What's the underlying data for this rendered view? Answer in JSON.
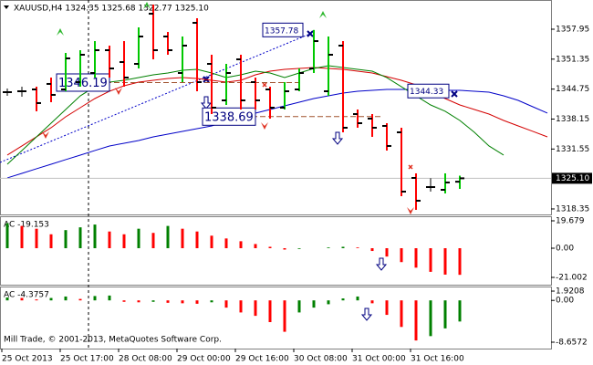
{
  "chart_data": [
    {
      "type": "ohlc",
      "title": "XAUUSD,H4  1324.35 1325.68 1322.77 1325.10",
      "categories": [
        "25 Oct 2013",
        null,
        null,
        null,
        "25 Oct 17:00",
        null,
        null,
        null,
        "28 Oct 08:00",
        null,
        null,
        null,
        "29 Oct 00:00",
        null,
        null,
        null,
        "29 Oct 16:00",
        null,
        null,
        null,
        "30 Oct 08:00",
        null,
        null,
        null,
        "31 Oct 00:00",
        null,
        null,
        null,
        "31 Oct 16:00",
        null,
        null,
        null,
        null,
        null,
        null,
        null,
        null,
        null
      ],
      "open": [
        1344.08,
        1344.28,
        1344.68,
        1345.89,
        1344.68,
        1346.29,
        1348.3,
        1353.32,
        1350.71,
        1350.31,
        1361.36,
        1356.34,
        1348.3,
        1359.35,
        1350.31,
        1342.27,
        1351.31,
        1346.29,
        1344.68,
        1340.66,
        1344.68,
        1349.3,
        1344.28,
        1354.33,
        1339.25,
        1338.25,
        1336.64,
        1335.23,
        1325.18,
        1323.17,
        1322.57,
        1324.35,
        null,
        null,
        null,
        null,
        null,
        null
      ],
      "high": [
        1344.88,
        1345.28,
        1345.28,
        1347.29,
        1352.72,
        1353.32,
        1355.33,
        1354.33,
        1355.33,
        1358.35,
        1363.37,
        1357.34,
        1356.34,
        1360.36,
        1352.32,
        1350.31,
        1352.32,
        1347.29,
        1345.28,
        1346.29,
        1349.3,
        1357.78,
        1356.34,
        1355.33,
        1340.26,
        1339.25,
        1337.24,
        1336.24,
        1326.19,
        1325.18,
        1326.19,
        1325.68,
        null,
        null,
        null,
        null,
        null,
        null
      ],
      "low": [
        1343.27,
        1343.07,
        1339.86,
        1341.87,
        1344.28,
        1345.28,
        1347.29,
        1347.29,
        1345.28,
        1349.3,
        1351.31,
        1352.32,
        1346.29,
        1344.28,
        1339.25,
        1341.26,
        1340.26,
        1340.26,
        1338.25,
        1340.26,
        1344.28,
        1348.3,
        1343.27,
        1335.23,
        1336.24,
        1334.23,
        1331.21,
        1321.16,
        1318.15,
        1322.17,
        1321.77,
        1322.77,
        null,
        null,
        null,
        null,
        null,
        null
      ],
      "close": [
        1344.08,
        1344.28,
        1341.67,
        1343.48,
        1351.52,
        1352.32,
        1353.32,
        1349.3,
        1347.29,
        1356.34,
        1353.32,
        1353.32,
        1354.33,
        1346.29,
        1340.66,
        1348.3,
        1342.27,
        1342.27,
        1340.66,
        1344.28,
        1348.3,
        1355.33,
        1352.32,
        1336.24,
        1337.24,
        1336.24,
        1332.22,
        1322.17,
        1320.16,
        1323.17,
        1324.18,
        1325.1,
        null,
        null,
        null,
        null,
        null,
        null
      ],
      "up_color": "#00c800",
      "down_color": "#ff0000",
      "flat_color": "#808080",
      "series": [
        {
          "color": "#0000c8",
          "values": [
            1325.19,
            1326.19,
            1327.2,
            1328.2,
            1329.21,
            1330.21,
            1331.22,
            1332.22,
            1332.82,
            1333.43,
            1334.23,
            1334.83,
            1335.44,
            1336.04,
            1336.64,
            1337.65,
            1338.65,
            1339.46,
            1340.26,
            1341.06,
            1341.87,
            1342.67,
            1343.27,
            1343.88,
            1344.28,
            1344.48,
            1344.68,
            1344.68,
            1344.68,
            1344.68,
            1344.48,
            1344.48,
            1344.28,
            1344.08,
            1343.27,
            1342.27,
            1340.86,
            1339.46
          ]
        },
        {
          "color": "#d40000",
          "values": [
            1330.21,
            1332.22,
            1334.23,
            1336.24,
            1338.65,
            1340.66,
            1342.67,
            1344.28,
            1345.49,
            1346.29,
            1346.69,
            1347.09,
            1347.29,
            1347.09,
            1346.69,
            1346.29,
            1346.69,
            1347.9,
            1348.7,
            1349.1,
            1349.3,
            1349.51,
            1349.3,
            1349.1,
            1348.7,
            1348.3,
            1347.5,
            1346.69,
            1345.69,
            1344.28,
            1342.67,
            1341.26,
            1340.26,
            1339.25,
            1337.85,
            1336.64,
            1335.44,
            1334.23
          ]
        },
        {
          "color": "#008000",
          "values": [
            1328.2,
            1331.21,
            1334.23,
            1337.24,
            1340.26,
            1343.27,
            1345.28,
            1346.29,
            1346.69,
            1347.29,
            1347.9,
            1348.3,
            1348.9,
            1349.1,
            1348.3,
            1347.29,
            1347.9,
            1348.7,
            1348.3,
            1347.29,
            1348.3,
            1349.3,
            1349.91,
            1349.51,
            1349.1,
            1348.7,
            1347.29,
            1345.28,
            1343.27,
            1341.26,
            1339.86,
            1337.85,
            1335.23,
            1332.22,
            1330.21,
            null,
            null,
            null
          ]
        }
      ],
      "ylim": [
        1317.14,
        1364.38
      ],
      "yticks": [
        1357.95,
        1351.35,
        1344.75,
        1338.15,
        1331.55,
        1318.35
      ],
      "last_price": {
        "value": 1325.1,
        "label": "1325.10"
      },
      "annotations": [
        1346.19,
        1338.69,
        1357.78,
        1344.33
      ],
      "footer": "Mill Trade, © 2001-2013, MetaQuotes Software Corp."
    },
    {
      "type": "histogram",
      "title": "AC -19.153",
      "values": [
        18,
        16,
        14,
        10,
        13,
        15,
        17,
        12,
        10,
        14,
        11,
        16,
        14,
        12,
        9,
        7,
        5,
        3,
        1,
        -1,
        -0.5,
        0,
        0.5,
        1,
        0.5,
        -2,
        -6,
        -10,
        -14,
        -17,
        -19,
        -19.153,
        null,
        null,
        null,
        null,
        null,
        null
      ],
      "up_color": "#008000",
      "down_color": "#ff0000",
      "ylim": [
        -26.25,
        22.96
      ],
      "yticks": [
        19.679,
        {
          "value": 0,
          "label": "0.00"
        },
        -21.002
      ]
    },
    {
      "type": "histogram",
      "title": "AC -4.3757",
      "values": [
        0.6,
        0.5,
        0.2,
        0.5,
        0.8,
        0.3,
        0.9,
        1.0,
        -0.3,
        -0.4,
        -0.3,
        -0.5,
        -0.6,
        -0.7,
        -0.4,
        -1.5,
        -2.5,
        -3.2,
        -4.5,
        -6.5,
        -2.5,
        -1.5,
        -0.8,
        0.4,
        0.8,
        -0.6,
        -3,
        -5.5,
        -8.3,
        -7.4,
        -5.8,
        -4.3757,
        null,
        null,
        null,
        null,
        null,
        null
      ],
      "up_color": "#008000",
      "down_color": "#ff0000",
      "ylim": [
        -9.98,
        2.87
      ],
      "yticks": [
        1.9208,
        {
          "value": 0,
          "label": "0.00"
        },
        -8.6572
      ]
    }
  ]
}
